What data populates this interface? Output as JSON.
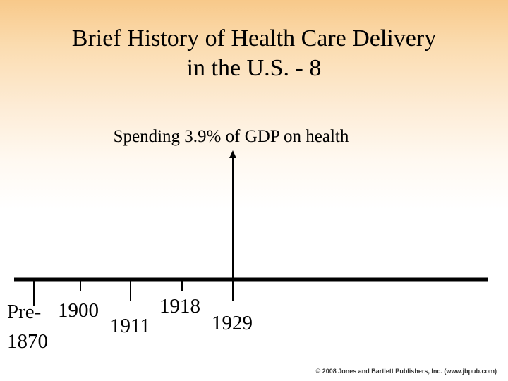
{
  "title": {
    "line1": "Brief History of Health Care Delivery",
    "line2": "in the U.S. - 8"
  },
  "annotation": "Spending 3.9% of GDP on health",
  "timeline": {
    "labels": {
      "pre1870_line1": "Pre-",
      "pre1870_line2": "1870",
      "y1900": "1900",
      "y1911": "1911",
      "y1918": "1918",
      "y1929": "1929"
    }
  },
  "footer": "© 2008 Jones and Bartlett Publishers, Inc. (www.jbpub.com)"
}
